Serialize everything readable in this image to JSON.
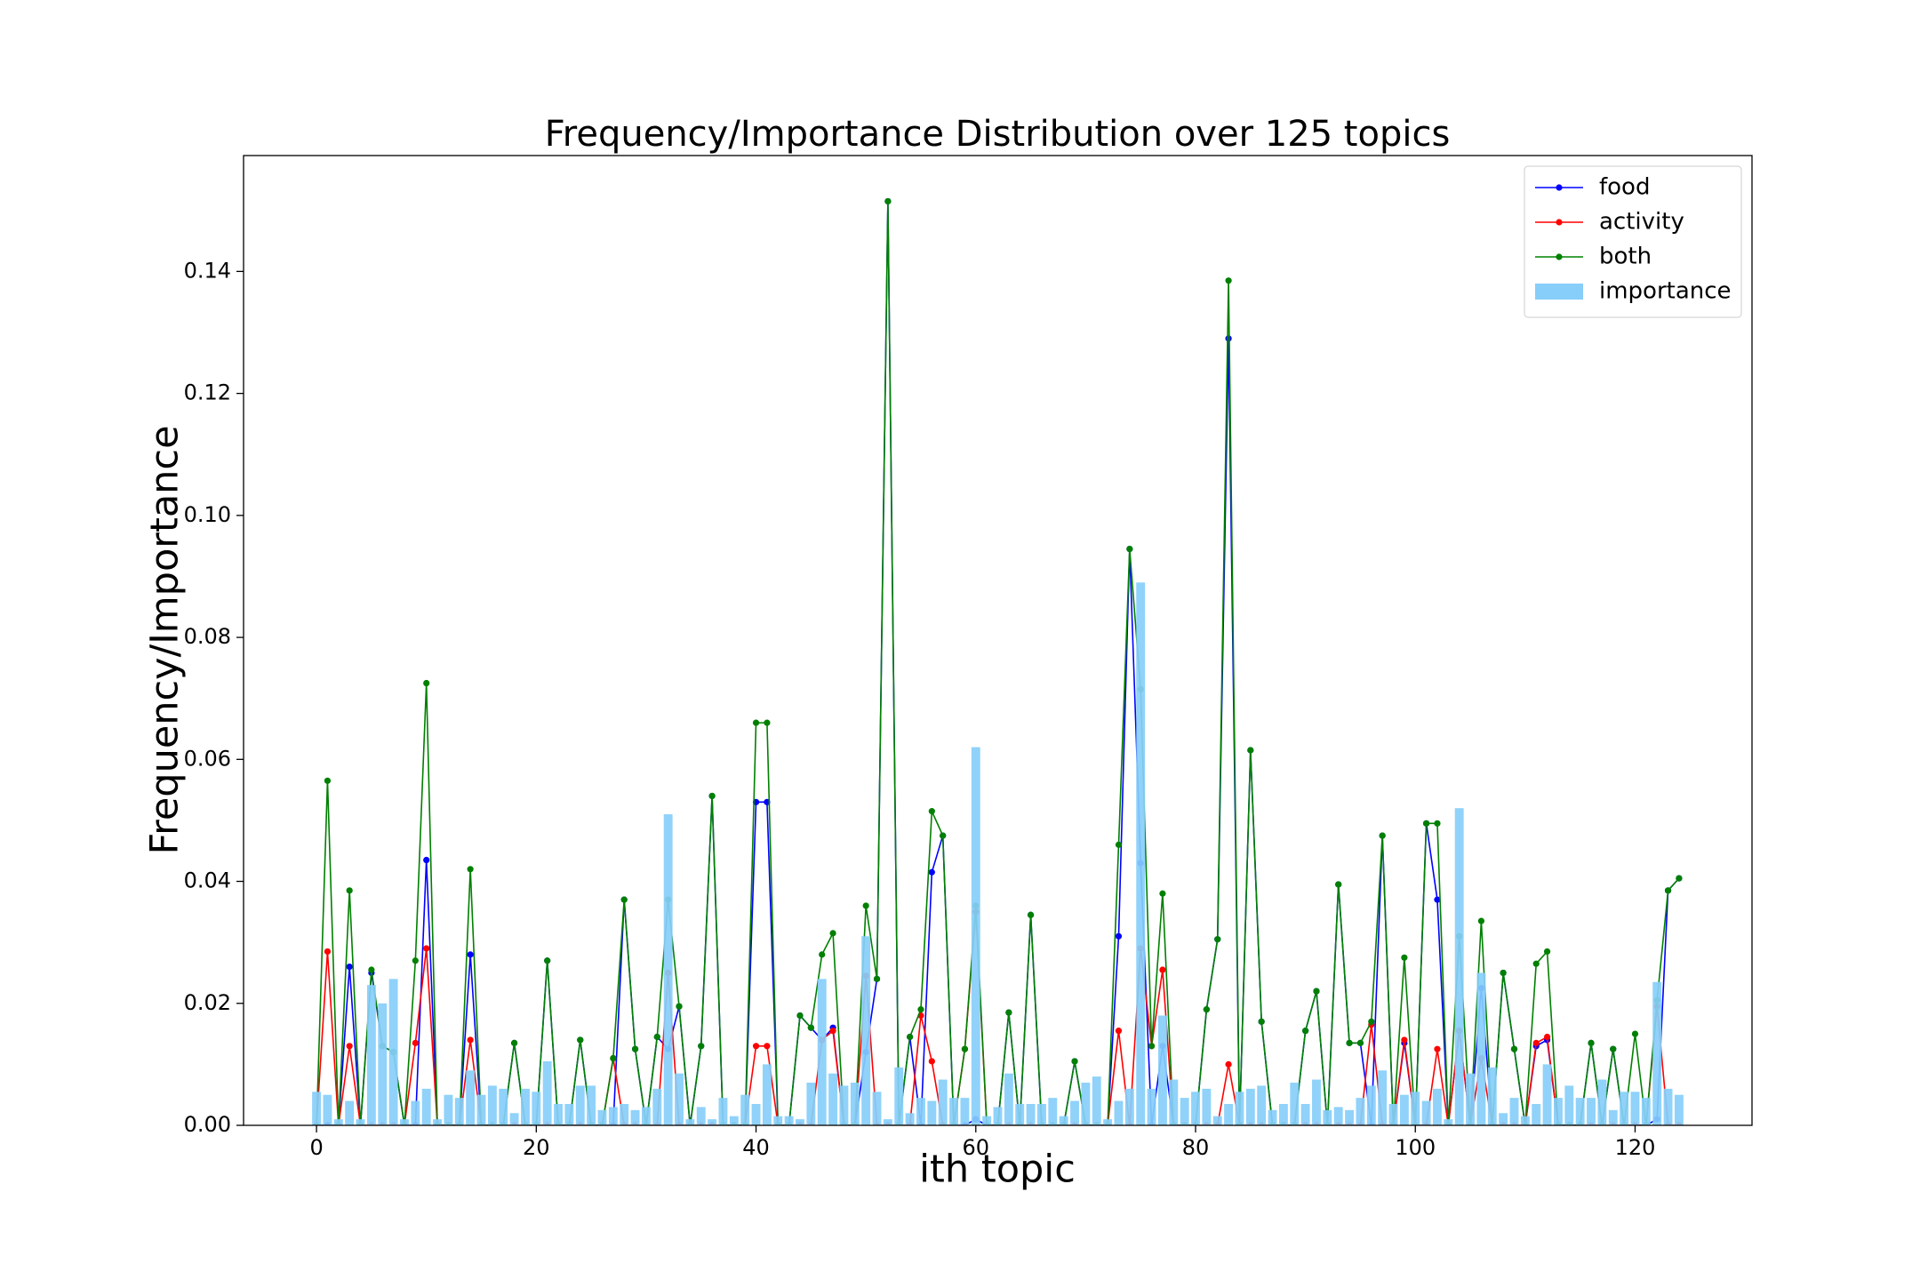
{
  "chart_data": {
    "type": "line",
    "title": "Frequency/Importance Distribution over 125 topics",
    "x_label": "ith topic",
    "y_label": "Frequency/Importance",
    "xlim": [
      -6.64,
      130.64
    ],
    "ylim": [
      0,
      0.159
    ],
    "xticks": [
      0,
      20,
      40,
      60,
      80,
      100,
      120
    ],
    "yticks": [
      {
        "value": 0,
        "label": "0.00"
      },
      {
        "value": 0.02,
        "label": "0.02"
      },
      {
        "value": 0.04,
        "label": "0.04"
      },
      {
        "value": 0.06,
        "label": "0.06"
      },
      {
        "value": 0.08,
        "label": "0.08"
      },
      {
        "value": 0.1,
        "label": "0.10"
      },
      {
        "value": 0.12,
        "label": "0.12"
      },
      {
        "value": 0.14,
        "label": "0.14"
      }
    ],
    "legend": "upper right",
    "x": [
      0,
      1,
      2,
      3,
      4,
      5,
      6,
      7,
      8,
      9,
      10,
      11,
      12,
      13,
      14,
      15,
      16,
      17,
      18,
      19,
      20,
      21,
      22,
      23,
      24,
      25,
      26,
      27,
      28,
      29,
      30,
      31,
      32,
      33,
      34,
      35,
      36,
      37,
      38,
      39,
      40,
      41,
      42,
      43,
      44,
      45,
      46,
      47,
      48,
      49,
      50,
      51,
      52,
      53,
      54,
      55,
      56,
      57,
      58,
      59,
      60,
      61,
      62,
      63,
      64,
      65,
      66,
      67,
      68,
      69,
      70,
      71,
      72,
      73,
      74,
      75,
      76,
      77,
      78,
      79,
      80,
      81,
      82,
      83,
      84,
      85,
      86,
      87,
      88,
      89,
      90,
      91,
      92,
      93,
      94,
      95,
      96,
      97,
      98,
      99,
      100,
      101,
      102,
      103,
      104,
      105,
      106,
      107,
      108,
      109,
      110,
      111,
      112,
      113,
      114,
      115,
      116,
      117,
      118,
      119,
      120,
      121,
      122,
      123,
      124
    ],
    "series": [
      {
        "name": "food",
        "type": "line",
        "color": "#0000ff",
        "values": [
          0,
          0,
          0,
          0.026,
          0,
          0.025,
          0.013,
          0.012,
          0,
          0,
          0.0435,
          0,
          0,
          0,
          0.028,
          0,
          0,
          0,
          0.0135,
          0,
          0,
          0.027,
          0,
          0,
          0.014,
          0,
          0,
          0,
          0.037,
          0.0125,
          0,
          0.0145,
          0.0125,
          0.0195,
          0,
          0.013,
          0.054,
          0,
          0,
          0,
          0.053,
          0.053,
          0,
          0,
          0.018,
          0.016,
          0.014,
          0.016,
          0,
          0,
          0.012,
          0.024,
          0.1515,
          0,
          0.0145,
          0,
          0.0415,
          0.0475,
          0,
          0,
          0.001,
          0,
          0,
          0.0185,
          0,
          0.0345,
          0,
          0,
          0,
          0.0105,
          0,
          0,
          0,
          0.031,
          0.0945,
          0.043,
          0,
          0.013,
          0,
          0,
          0,
          0.019,
          0.0305,
          0.129,
          0,
          0.0615,
          0.017,
          0,
          0,
          0,
          0.0155,
          0.022,
          0,
          0.0395,
          0.0135,
          0.0135,
          0,
          0.0475,
          0,
          0.0135,
          0,
          0.0495,
          0.037,
          0,
          0.0155,
          0,
          0.0225,
          0,
          0.025,
          0.0125,
          0,
          0.013,
          0.014,
          0,
          0,
          0,
          0.0135,
          0,
          0.0125,
          0,
          0,
          0,
          0.001,
          0.0385,
          0.0405
        ]
      },
      {
        "name": "activity",
        "type": "line",
        "color": "#ff0000",
        "values": [
          0,
          0.0285,
          0,
          0.013,
          0,
          0,
          0,
          0,
          0,
          0.0135,
          0.029,
          0,
          0,
          0,
          0.014,
          0,
          0,
          0,
          0,
          0,
          0,
          0,
          0,
          0,
          0,
          0,
          0,
          0.011,
          0,
          0,
          0,
          0,
          0.025,
          0,
          0,
          0,
          0,
          0,
          0,
          0,
          0.013,
          0.013,
          0,
          0,
          0,
          0,
          0.014,
          0.0155,
          0,
          0,
          0.0245,
          0,
          0,
          0,
          0,
          0.018,
          0.0105,
          0,
          0,
          0.0125,
          0.035,
          0,
          0,
          0,
          0,
          0,
          0,
          0,
          0,
          0,
          0,
          0,
          0,
          0.0155,
          0,
          0.029,
          0.013,
          0.0255,
          0,
          0,
          0,
          0,
          0,
          0.01,
          0,
          0,
          0,
          0,
          0,
          0,
          0,
          0,
          0,
          0,
          0,
          0,
          0.0165,
          0,
          0,
          0.014,
          0,
          0,
          0.0125,
          0,
          0.0155,
          0,
          0.011,
          0,
          0,
          0,
          0,
          0.0135,
          0.0145,
          0,
          0,
          0,
          0,
          0,
          0,
          0,
          0,
          0,
          0.0195,
          0,
          0
        ]
      },
      {
        "name": "both",
        "type": "line",
        "color": "#008000",
        "values": [
          0,
          0.0565,
          0,
          0.0385,
          0,
          0.0255,
          0.013,
          0.012,
          0,
          0.027,
          0.0725,
          0,
          0,
          0,
          0.042,
          0,
          0,
          0,
          0.0135,
          0,
          0,
          0.027,
          0,
          0,
          0.014,
          0,
          0,
          0.011,
          0.037,
          0.0125,
          0,
          0.0145,
          0.037,
          0.0195,
          0,
          0.013,
          0.054,
          0,
          0,
          0,
          0.066,
          0.066,
          0,
          0,
          0.018,
          0.016,
          0.028,
          0.0315,
          0,
          0,
          0.036,
          0.024,
          0.1515,
          0,
          0.0145,
          0.019,
          0.0515,
          0.0475,
          0,
          0.0125,
          0.036,
          0,
          0,
          0.0185,
          0,
          0.0345,
          0,
          0,
          0,
          0.0105,
          0,
          0,
          0,
          0.046,
          0.0945,
          0.0715,
          0.013,
          0.038,
          0,
          0,
          0,
          0.019,
          0.0305,
          0.1385,
          0,
          0.0615,
          0.017,
          0,
          0,
          0,
          0.0155,
          0.022,
          0,
          0.0395,
          0.0135,
          0.0135,
          0.017,
          0.0475,
          0,
          0.0275,
          0,
          0.0495,
          0.0495,
          0,
          0.031,
          0,
          0.0335,
          0,
          0.025,
          0.0125,
          0,
          0.0265,
          0.0285,
          0,
          0,
          0,
          0.0135,
          0,
          0.0125,
          0,
          0.015,
          0,
          0.0205,
          0.0385,
          0.0405
        ]
      },
      {
        "name": "importance",
        "type": "bar",
        "color": "#87cefa",
        "values": [
          0.0055,
          0.005,
          0.001,
          0.004,
          0.001,
          0.023,
          0.02,
          0.024,
          0.001,
          0.004,
          0.006,
          0.001,
          0.005,
          0.0045,
          0.009,
          0.005,
          0.0065,
          0.006,
          0.002,
          0.006,
          0.0055,
          0.0105,
          0.0035,
          0.0035,
          0.0065,
          0.0065,
          0.0025,
          0.003,
          0.0035,
          0.0025,
          0.003,
          0.006,
          0.051,
          0.0085,
          0.001,
          0.003,
          0.001,
          0.0045,
          0.0015,
          0.005,
          0.0035,
          0.01,
          0.0015,
          0.0015,
          0.001,
          0.007,
          0.024,
          0.0085,
          0.0065,
          0.007,
          0.031,
          0.0055,
          0.001,
          0.0095,
          0.002,
          0.0045,
          0.004,
          0.0075,
          0.0045,
          0.0045,
          0.062,
          0.0015,
          0.003,
          0.0085,
          0.0035,
          0.0035,
          0.0035,
          0.0045,
          0.0015,
          0.004,
          0.007,
          0.008,
          0.001,
          0.004,
          0.006,
          0.089,
          0.006,
          0.018,
          0.0075,
          0.0045,
          0.0055,
          0.006,
          0.0015,
          0.0035,
          0.0055,
          0.006,
          0.0065,
          0.0025,
          0.0035,
          0.007,
          0.0035,
          0.0075,
          0.0025,
          0.003,
          0.0025,
          0.0045,
          0.0065,
          0.009,
          0.0035,
          0.005,
          0.0055,
          0.004,
          0.006,
          0.001,
          0.052,
          0.0085,
          0.025,
          0.0095,
          0.002,
          0.0045,
          0.0015,
          0.0035,
          0.01,
          0.0045,
          0.0065,
          0.0045,
          0.0045,
          0.0075,
          0.0025,
          0.0055,
          0.0055,
          0.0045,
          0.0235,
          0.006,
          0.005
        ]
      }
    ]
  }
}
